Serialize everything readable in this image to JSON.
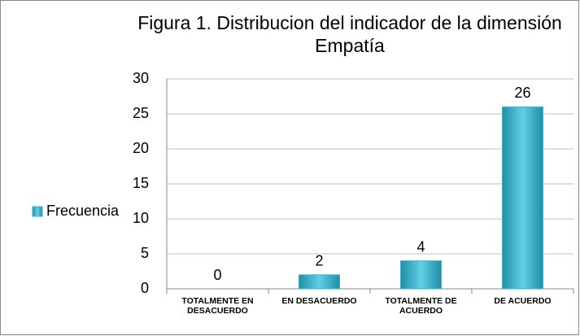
{
  "chart_data": {
    "type": "bar",
    "title": "Figura 1. Distribucion del indicador de la dimensión Empatía",
    "categories": [
      "TOTALMENTE EN DESACUERDO",
      "EN DESACUERDO",
      "TOTALMENTE DE ACUERDO",
      "DE ACUERDO"
    ],
    "series": [
      {
        "name": "Frecuencia",
        "color": "#3cb6cf",
        "values": [
          0,
          2,
          4,
          26
        ]
      }
    ],
    "ylim": [
      0,
      30
    ],
    "yticks": [
      0,
      5,
      10,
      15,
      20,
      25,
      30
    ],
    "grid": true,
    "legend": "left"
  }
}
